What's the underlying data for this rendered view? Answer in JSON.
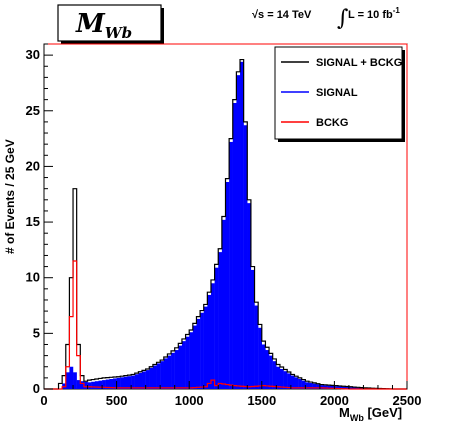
{
  "chart_data": {
    "type": "bar",
    "title_main": "M",
    "title_sub": "Wb",
    "annotation": {
      "sqrt_s": "√s = 14 TeV",
      "lumi_prefix": "L = 10 fb",
      "lumi_exp": "-1"
    },
    "xlabel_main": "M",
    "xlabel_sub": "Wb",
    "xlabel_unit": " [GeV]",
    "ylabel": "# of Events / 25 GeV",
    "xlim": [
      0,
      2500
    ],
    "ylim": [
      0,
      31
    ],
    "bin_width": 25,
    "x_ticks": [
      "0",
      "500",
      "1000",
      "1500",
      "2000",
      "2500"
    ],
    "y_ticks": [
      "0",
      "5",
      "10",
      "15",
      "20",
      "25",
      "30"
    ],
    "legend_position": "top-right",
    "series": [
      {
        "name": "SIGNAL + BCKG",
        "color": "#000000",
        "style": "step-line",
        "points": [
          [
            0,
            0
          ],
          [
            75,
            0
          ],
          [
            100,
            0.5
          ],
          [
            125,
            1.2
          ],
          [
            150,
            4
          ],
          [
            175,
            10
          ],
          [
            200,
            18
          ],
          [
            225,
            4
          ],
          [
            250,
            1.2
          ],
          [
            275,
            0.7
          ],
          [
            300,
            0.8
          ],
          [
            400,
            1.0
          ],
          [
            500,
            1.1
          ],
          [
            600,
            1.3
          ],
          [
            700,
            1.8
          ],
          [
            800,
            2.6
          ],
          [
            900,
            3.7
          ],
          [
            1000,
            5.3
          ],
          [
            1050,
            6.5
          ],
          [
            1100,
            7.6
          ],
          [
            1150,
            9.8
          ],
          [
            1200,
            12.6
          ],
          [
            1225,
            15.5
          ],
          [
            1250,
            18.9
          ],
          [
            1275,
            22.5
          ],
          [
            1300,
            26
          ],
          [
            1325,
            28.5
          ],
          [
            1350,
            29.6
          ],
          [
            1375,
            24
          ],
          [
            1400,
            17
          ],
          [
            1425,
            11
          ],
          [
            1450,
            7.8
          ],
          [
            1475,
            5.8
          ],
          [
            1500,
            4.3
          ],
          [
            1550,
            3.2
          ],
          [
            1600,
            2.2
          ],
          [
            1700,
            1.3
          ],
          [
            1800,
            0.7
          ],
          [
            1900,
            0.4
          ],
          [
            2000,
            0.3
          ],
          [
            2100,
            0.2
          ],
          [
            2200,
            0.1
          ],
          [
            2300,
            0.05
          ],
          [
            2400,
            0
          ],
          [
            2475,
            0
          ]
        ]
      },
      {
        "name": "SIGNAL",
        "color": "#0000ff",
        "style": "filled",
        "points": [
          [
            0,
            0
          ],
          [
            100,
            0
          ],
          [
            125,
            0.5
          ],
          [
            150,
            1.5
          ],
          [
            175,
            2
          ],
          [
            200,
            1.5
          ],
          [
            225,
            0.8
          ],
          [
            250,
            0.7
          ],
          [
            300,
            0.6
          ],
          [
            400,
            0.8
          ],
          [
            500,
            1.0
          ],
          [
            600,
            1.2
          ],
          [
            700,
            1.7
          ],
          [
            800,
            2.5
          ],
          [
            900,
            3.5
          ],
          [
            1000,
            5.1
          ],
          [
            1050,
            6.3
          ],
          [
            1100,
            7.4
          ],
          [
            1150,
            9.5
          ],
          [
            1200,
            12.3
          ],
          [
            1225,
            15.2
          ],
          [
            1250,
            18.6
          ],
          [
            1275,
            22.2
          ],
          [
            1300,
            25.7
          ],
          [
            1325,
            28.2
          ],
          [
            1350,
            29.4
          ],
          [
            1375,
            23.7
          ],
          [
            1400,
            16.7
          ],
          [
            1425,
            10.7
          ],
          [
            1450,
            7.5
          ],
          [
            1475,
            5.5
          ],
          [
            1500,
            4.0
          ],
          [
            1550,
            3.0
          ],
          [
            1600,
            2.0
          ],
          [
            1700,
            1.2
          ],
          [
            1800,
            0.6
          ],
          [
            1900,
            0.35
          ],
          [
            2000,
            0.25
          ],
          [
            2100,
            0.15
          ],
          [
            2200,
            0.08
          ],
          [
            2300,
            0.03
          ],
          [
            2400,
            0
          ],
          [
            2475,
            0
          ]
        ]
      },
      {
        "name": "BCKG",
        "color": "#ff0000",
        "style": "step-line",
        "points": [
          [
            0,
            0
          ],
          [
            100,
            0
          ],
          [
            125,
            0.2
          ],
          [
            150,
            2
          ],
          [
            175,
            6.5
          ],
          [
            200,
            11.5
          ],
          [
            225,
            3
          ],
          [
            250,
            0.5
          ],
          [
            275,
            0.2
          ],
          [
            300,
            0.2
          ],
          [
            500,
            0.1
          ],
          [
            1000,
            0.1
          ],
          [
            1100,
            0.2
          ],
          [
            1150,
            0.8
          ],
          [
            1175,
            0.3
          ],
          [
            1200,
            0.5
          ],
          [
            1300,
            0.3
          ],
          [
            1400,
            0.2
          ],
          [
            1500,
            0.3
          ],
          [
            1700,
            0.1
          ],
          [
            1900,
            0.1
          ],
          [
            2100,
            0
          ],
          [
            2475,
            0
          ]
        ]
      }
    ]
  }
}
